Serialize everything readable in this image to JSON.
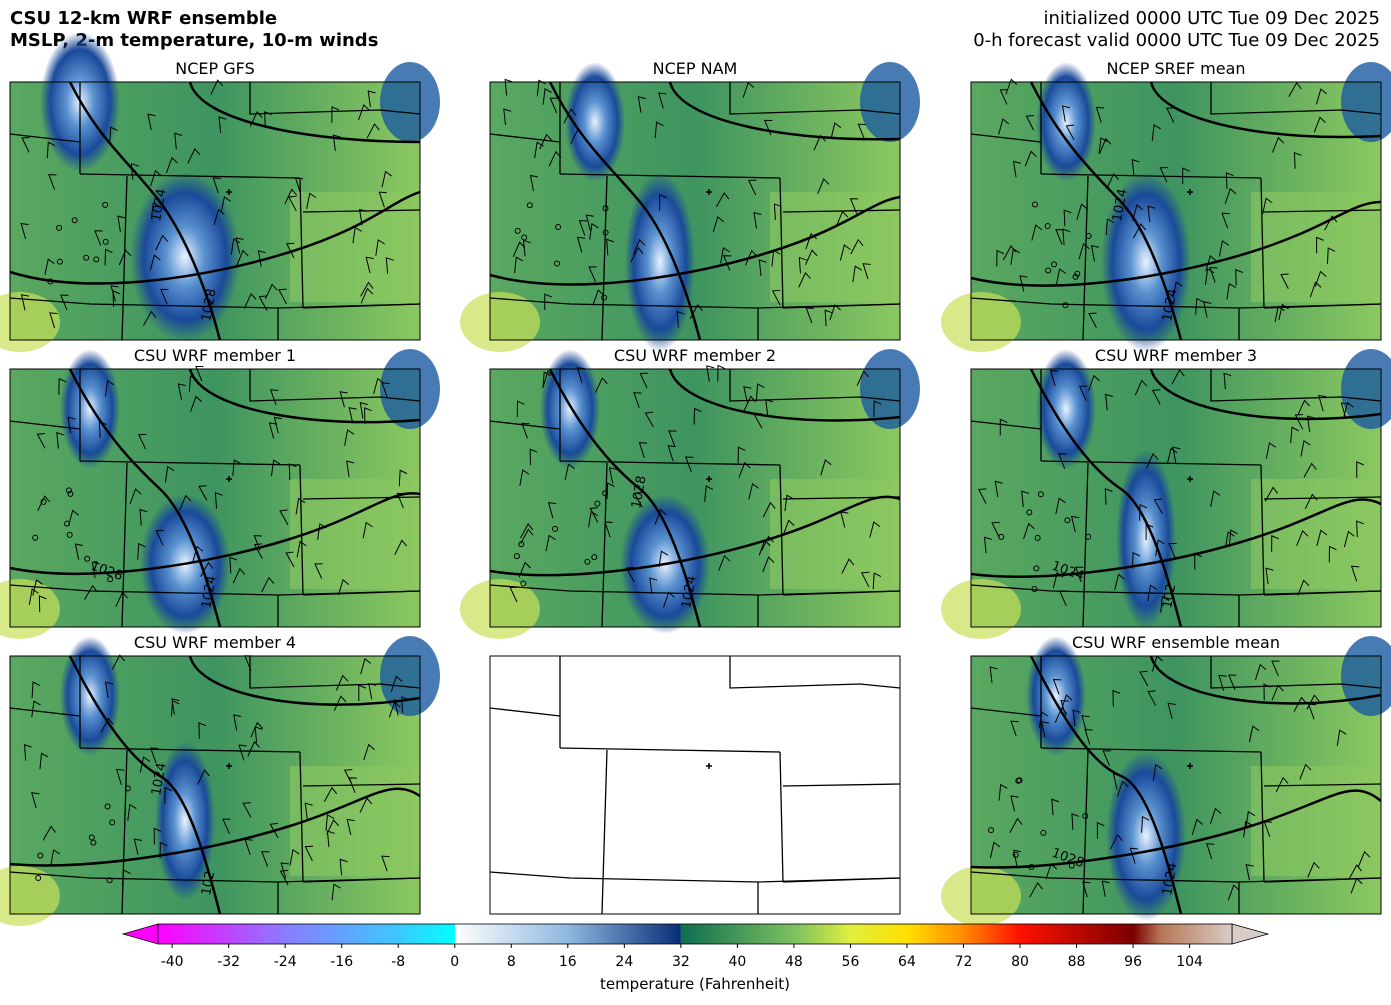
{
  "header": {
    "title_lines": [
      "CSU 12-km WRF ensemble",
      "MSLP, 2-m temperature, 10-m winds"
    ],
    "init_lines": [
      "initialized 0000 UTC Tue 09 Dec 2025",
      "0-h forecast valid 0000 UTC Tue 09 Dec 2025"
    ]
  },
  "panels": [
    {
      "title": "NCEP GFS",
      "contour_labels": [
        "1024",
        "1028"
      ]
    },
    {
      "title": "NCEP NAM",
      "contour_labels": []
    },
    {
      "title": "NCEP SREF mean",
      "contour_labels": [
        "1024",
        "1024"
      ]
    },
    {
      "title": "CSU WRF member 1",
      "contour_labels": [
        "1028",
        "1024"
      ]
    },
    {
      "title": "CSU WRF member 2",
      "contour_labels": [
        "1028",
        "1024"
      ]
    },
    {
      "title": "CSU WRF member 3",
      "contour_labels": [
        "1024",
        "102"
      ]
    },
    {
      "title": "CSU WRF member 4",
      "contour_labels": [
        "1024",
        "102"
      ]
    },
    {
      "title": "CSU WRF ensemble mean",
      "contour_labels": [
        "1028",
        "1024"
      ]
    }
  ],
  "colorbar": {
    "label": "temperature (Fahrenheit)",
    "lim": [
      -42,
      110
    ],
    "ticks": [
      -40,
      -32,
      -24,
      -16,
      -8,
      0,
      8,
      16,
      24,
      32,
      40,
      48,
      56,
      64,
      72,
      80,
      88,
      96,
      104
    ],
    "colors": [
      [
        -42,
        "#ff00ff"
      ],
      [
        -24,
        "#8a7cff"
      ],
      [
        -8,
        "#3cc8ff"
      ],
      [
        0,
        "#00ffff"
      ],
      [
        0.01,
        "#ffffff"
      ],
      [
        16,
        "#8fb8e0"
      ],
      [
        31.9,
        "#0a2e78"
      ],
      [
        32,
        "#0e6e50"
      ],
      [
        48,
        "#7cc060"
      ],
      [
        56,
        "#e0ee40"
      ],
      [
        64,
        "#ffe000"
      ],
      [
        72,
        "#ff8a00"
      ],
      [
        80,
        "#ff1000"
      ],
      [
        96,
        "#7a0000"
      ],
      [
        100,
        "#b87858"
      ],
      [
        110,
        "#d8ccc6"
      ]
    ]
  }
}
